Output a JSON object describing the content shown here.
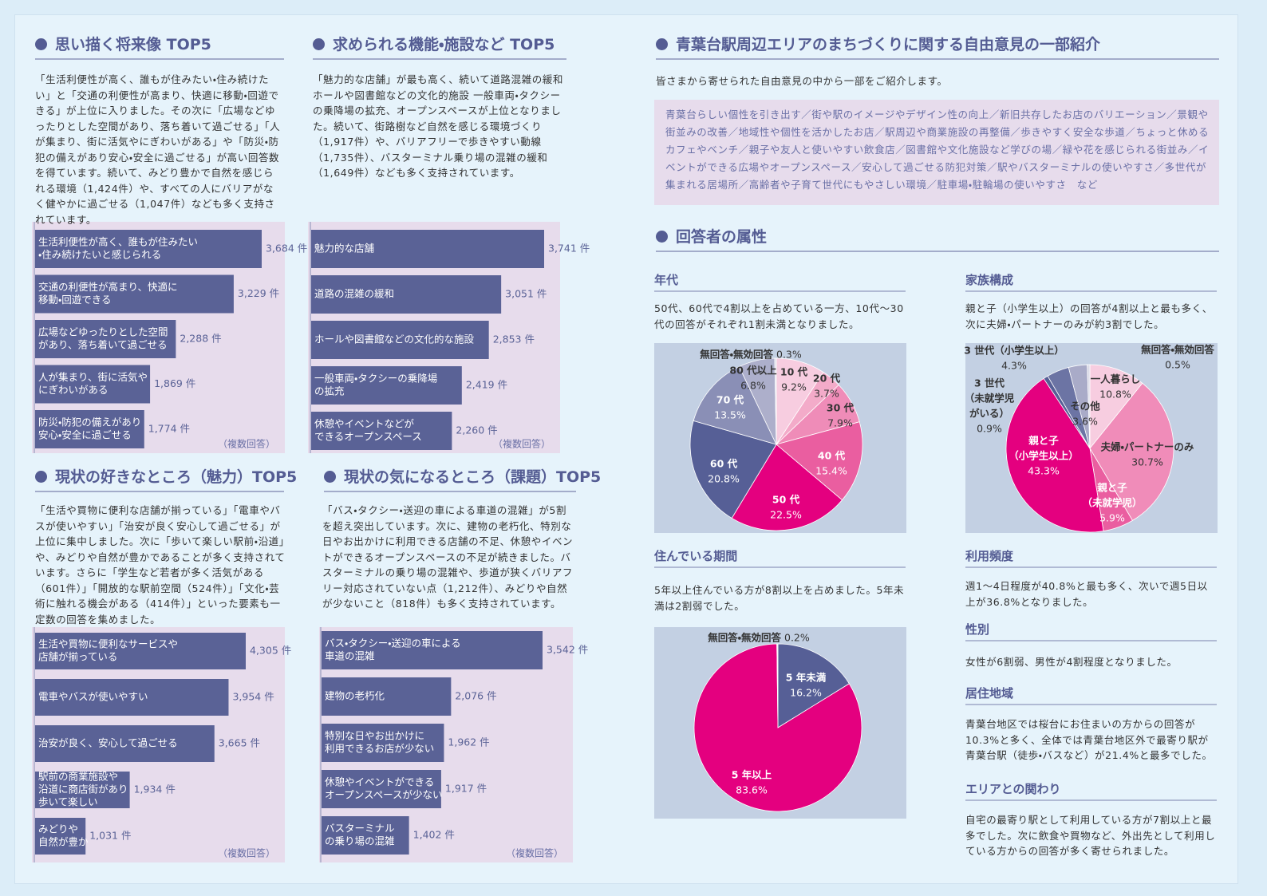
{
  "ranking": [
    {
      "title": "思い描く将来像 TOP5",
      "text": "「生活利便性が高く、誰もが住みたい・住み続けたい」と「交通の利便性が高まり、快適に移動・回遊できる」が上位に入りました。その次に「広場などゆったりとした空間があり、落ち着いて過ごせる」「人が集まり、街に活気やにぎわいがある」や「防災・防犯の備えがあり安心・安全に過ごせる」が高い回答数を得ています。続いて、みどり豊かで自然を感じられる環境（1,424件）や、すべての人にバリアがなく健やかに過ごせる（1,047件）なども多く支持されています。",
      "chart": {
        "type": "bar",
        "color": "#5a6296",
        "categories": [
          [
            "生活利便性が高く、誰もが住みたい",
            "・住み続けたいと感じられる"
          ],
          [
            "交通の利便性が高まり、快適に",
            "移動・回遊できる"
          ],
          [
            "広場などゆったりとした空間",
            "があり、落ち着いて過ごせる"
          ],
          [
            "人が集まり、街に活気や",
            "にぎわいがある"
          ],
          [
            "防災・防犯の備えがあり",
            "安心・安全に過ごせる"
          ]
        ],
        "values": [
          3684,
          3229,
          2288,
          1869,
          1774
        ],
        "value_labels": [
          "3,684 件",
          "3,229 件",
          "2,288 件",
          "1,869 件",
          "1,774 件"
        ],
        "note": "（複数回答）"
      }
    },
    {
      "title": "求められる機能・施設など TOP5",
      "text": "「魅力的な店舗」が最も高く、続いて道路混雑の緩和ホールや図書館などの文化的施設 一般車両・タクシーの乗降場の拡充、オープンスペースが上位となりました。続いて、街路樹など自然を感じる環境づくり（1,917件）や、バリアフリーで歩きやすい動線（1,735件）、バスターミナル乗り場の混雑の緩和（1,649件）なども多く支持されています。",
      "chart": {
        "type": "bar",
        "color": "#5a6296",
        "categories": [
          [
            "魅力的な店舗"
          ],
          [
            "道路の混雑の緩和"
          ],
          [
            "ホールや図書館などの文化的な施設"
          ],
          [
            "一般車両・タクシーの乗降場",
            "の拡充"
          ],
          [
            "休憩やイベントなどが",
            "できるオープンスペース"
          ]
        ],
        "values": [
          3741,
          3051,
          2853,
          2419,
          2260
        ],
        "value_labels": [
          "3,741 件",
          "3,051 件",
          "2,853 件",
          "2,419 件",
          "2,260 件"
        ],
        "note": "（複数回答）"
      }
    },
    {
      "title": "現状の好きなところ（魅力）TOP5",
      "text": "「生活や買物に便利な店舗が揃っている」「電車やバスが使いやすい」「治安が良く安心して過ごせる」が上位に集中しました。次に「歩いて楽しい駅前・沿道」や、みどりや自然が豊かであることが多く支持されています。さらに「学生など若者が多く活気がある（601件）」「開放的な駅前空間（524件）」「文化・芸術に触れる機会がある（414件）」といった要素も一定数の回答を集めました。",
      "chart": {
        "type": "bar",
        "color": "#5a6296",
        "categories": [
          [
            "生活や買物に便利なサービスや",
            "店舗が揃っている"
          ],
          [
            "電車やバスが使いやすい"
          ],
          [
            "治安が良く、安心して過ごせる"
          ],
          [
            "駅前の商業施設や",
            "沿道に商店街があり",
            "歩いて楽しい"
          ],
          [
            "みどりや",
            "自然が豊か"
          ]
        ],
        "values": [
          4305,
          3954,
          3665,
          1934,
          1031
        ],
        "value_labels": [
          "4,305 件",
          "3,954 件",
          "3,665 件",
          "1,934 件",
          "1,031 件"
        ],
        "note": "（複数回答）"
      }
    },
    {
      "title": "現状の気になるところ（課題）TOP5",
      "text": "「バス・タクシー・送迎の車による車道の混雑」が5割を超え突出しています。次に、建物の老朽化、特別な日やお出かけに利用できる店舗の不足、休憩やイベントができるオープンスペースの不足が続きました。バスターミナルの乗り場の混雑や、歩道が狭くバリアフリー対応されていない点（1,212件）、みどりや自然が少ないこと（818件）も多く支持されています。",
      "chart": {
        "type": "bar",
        "color": "#5a6296",
        "categories": [
          [
            "バス・タクシー・送迎の車による",
            "車道の混雑"
          ],
          [
            "建物の老朽化"
          ],
          [
            "特別な日やお出かけに",
            "利用できるお店が少ない"
          ],
          [
            "休憩やイベントができる",
            "オープンスペースが少ない"
          ],
          [
            "バスターミナル",
            "の乗り場の混雑"
          ]
        ],
        "values": [
          3542,
          2076,
          1962,
          1917,
          1402
        ],
        "value_labels": [
          "3,542 件",
          "2,076 件",
          "1,962 件",
          "1,917 件",
          "1,402 件"
        ],
        "note": "（複数回答）"
      }
    }
  ],
  "opinions": {
    "title": "青葉台駅周辺エリアのまちづくりに関する自由意見の一部紹介",
    "intro": "皆さまから寄せられた自由意見の中から一部をご紹介します。",
    "items": "青葉台らしい個性を引き出す／街や駅のイメージやデザイン性の向上／新旧共存したお店のバリエーション／景観や街並みの改善／地域性や個性を活かしたお店／駅周辺や商業施設の再整備／歩きやすく安全な歩道／ちょっと休めるカフェやベンチ／親子や友人と使いやすい飲食店／図書館や文化施設など学びの場／緑や花を感じられる街並み／イベントができる広場やオープンスペース／安心して過ごせる防犯対策／駅やバスターミナルの使いやすさ／多世代が集まれる居場所／高齢者や子育て世代にもやさしい環境／駐車場・駐輪場の使いやすさ　など"
  },
  "attributes": {
    "title": "回答者の属性",
    "age": {
      "heading": "年代",
      "text": "50代、60代で4割以上を占めている一方、10代～30代の回答がそれぞれ1割未満となりました。",
      "chart": {
        "type": "pie",
        "categories": [
          [
            "10 代"
          ],
          [
            "20 代"
          ],
          [
            "30 代"
          ],
          [
            "40 代"
          ],
          [
            "50 代"
          ],
          [
            "60 代"
          ],
          [
            "70 代"
          ],
          [
            "80 代以上"
          ],
          [
            "無回答・無効回答"
          ]
        ],
        "values": [
          9.2,
          3.7,
          7.9,
          15.4,
          22.5,
          20.8,
          13.5,
          6.8,
          0.3
        ],
        "value_labels": [
          "9.2%",
          "3.7%",
          "7.9%",
          "15.4%",
          "22.5%",
          "20.8%",
          "13.5%",
          "6.8%",
          "0.3%"
        ],
        "colors": [
          "#f7cde0",
          "#f3abc9",
          "#ef8cb8",
          "#ea5ea0",
          "#e4007f",
          "#565f96",
          "#8a8fb6",
          "#adafcb",
          "#d9d9e6"
        ]
      }
    },
    "family": {
      "heading": "家族構成",
      "text": "親と子（小学生以上）の回答が4割以上と最も多く、次に夫婦・パートナーのみが約3割でした。",
      "chart": {
        "type": "pie",
        "categories": [
          [
            "一人暮らし"
          ],
          [
            "夫婦・パートナーのみ"
          ],
          [
            "親と子",
            "（未就学児）"
          ],
          [
            "親と子",
            "（小学生以上）"
          ],
          [
            "3 世代",
            "（未就学児",
            "がいる）"
          ],
          [
            "3 世代（小学生以上）"
          ],
          [
            "その他"
          ],
          [
            "無回答・無効回答"
          ]
        ],
        "values": [
          10.8,
          30.7,
          5.9,
          43.3,
          0.9,
          4.3,
          3.6,
          0.5
        ],
        "value_labels": [
          "10.8%",
          "30.7%",
          "5.9%",
          "43.3%",
          "0.9%",
          "4.3%",
          "3.6%",
          "0.5%"
        ],
        "colors": [
          "#f7cde0",
          "#f08cb9",
          "#ea5ea0",
          "#e4007f",
          "#565f96",
          "#6c74a4",
          "#a9abc8",
          "#d9d9e6"
        ]
      }
    },
    "residence": {
      "heading": "住んでいる期間",
      "text": "5年以上住んでいる方が8割以上を占めました。5年未満は2割弱でした。",
      "chart": {
        "type": "pie",
        "categories": [
          [
            "5 年未満"
          ],
          [
            "5 年以上"
          ],
          [
            "無回答・無効回答"
          ]
        ],
        "values": [
          16.2,
          83.6,
          0.2
        ],
        "value_labels": [
          "16.2%",
          "83.6%",
          "0.2%"
        ],
        "colors": [
          "#565f96",
          "#e4007f",
          "#f2f2f7"
        ]
      }
    },
    "frequency": {
      "heading": "利用頻度",
      "text": "週1～4日程度が40.8%と最も多く、次いで週5日以上が36.8%となりました。"
    },
    "gender": {
      "heading": "性別",
      "text": "女性が6割弱、男性が4割程度となりました。"
    },
    "area": {
      "heading": "居住地域",
      "text": "青葉台地区では桜台にお住まいの方からの回答が10.3%と多く、全体では青葉台地区外で最寄り駅が青葉台駅（徒歩・バスなど）が21.4%と最多でした。"
    },
    "relation": {
      "heading": "エリアとの関わり",
      "text": "自宅の最寄り駅として利用している方が7割以上と最多でした。次に飲食や買物など、外出先として利用している方からの回答が多く寄せられました。"
    }
  }
}
